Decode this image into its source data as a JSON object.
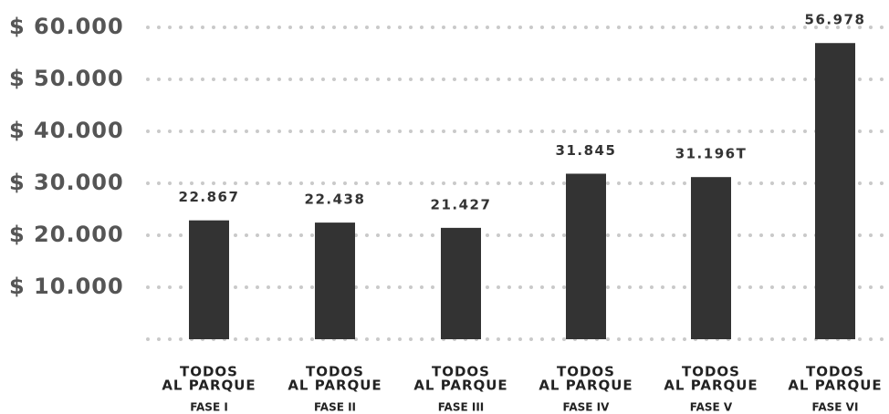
{
  "chart_data": {
    "type": "bar",
    "categories": [
      [
        "TODOS",
        "AL PARQUE",
        "FASE I"
      ],
      [
        "TODOS",
        "AL PARQUE",
        "FASE II"
      ],
      [
        "TODOS",
        "AL PARQUE",
        "FASE III"
      ],
      [
        "TODOS",
        "AL PARQUE",
        "FASE IV"
      ],
      [
        "TODOS",
        "AL PARQUE",
        "FASE V"
      ],
      [
        "TODOS",
        "AL PARQUE",
        "FASE VI"
      ]
    ],
    "values": [
      22867,
      22438,
      21427,
      31845,
      31196,
      56978
    ],
    "value_labels": [
      "22.867",
      "22.438",
      "21.427",
      "31.845",
      "31.196T",
      "56.978"
    ],
    "color": "#333333",
    "ylim": [
      0,
      60000
    ],
    "yticks": [
      {
        "value": 10000,
        "label": "$ 10.000"
      },
      {
        "value": 20000,
        "label": "$ 20.000"
      },
      {
        "value": 30000,
        "label": "$ 30.000"
      },
      {
        "value": 40000,
        "label": "$ 40.000"
      },
      {
        "value": 50000,
        "label": "$ 50.000"
      },
      {
        "value": 60000,
        "label": "$ 60.000"
      }
    ],
    "grid": true
  }
}
